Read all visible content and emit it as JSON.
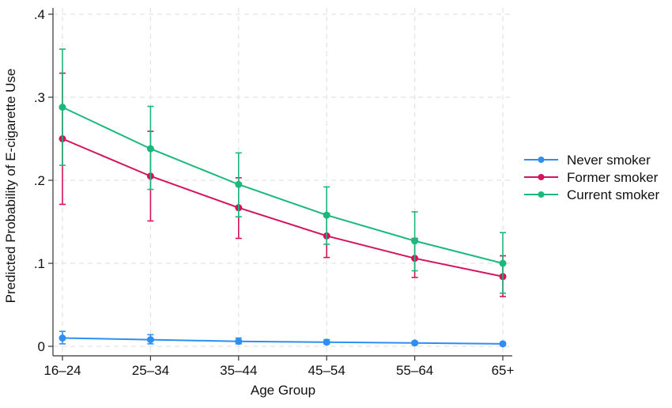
{
  "chart_data": {
    "type": "line",
    "title": "",
    "xlabel": "Age Group",
    "ylabel": "Predicted Probability of E-cigarette Use",
    "categories": [
      "16–24",
      "25–34",
      "35–44",
      "45–54",
      "55–64",
      "65+"
    ],
    "ylim": [
      0,
      0.4
    ],
    "yticks": [
      0,
      0.1,
      0.2,
      0.3,
      0.4
    ],
    "ytick_labels": [
      "0",
      ".1",
      ".2",
      ".3",
      ".4"
    ],
    "grid": true,
    "legend_position": "right",
    "series": [
      {
        "name": "Never smoker",
        "color": "#2f8ff0",
        "values": [
          0.01,
          0.008,
          0.006,
          0.005,
          0.004,
          0.003
        ],
        "ci_low": [
          0.003,
          0.003,
          0.003,
          0.003,
          0.002,
          0.002
        ],
        "ci_high": [
          0.018,
          0.014,
          0.01,
          0.008,
          0.006,
          0.004
        ]
      },
      {
        "name": "Former smoker",
        "color": "#d4145a",
        "values": [
          0.25,
          0.205,
          0.167,
          0.133,
          0.106,
          0.084
        ],
        "ci_low": [
          0.171,
          0.151,
          0.13,
          0.107,
          0.083,
          0.06
        ],
        "ci_high": [
          0.329,
          0.259,
          0.203,
          0.16,
          0.13,
          0.109
        ]
      },
      {
        "name": "Current smoker",
        "color": "#1ab87a",
        "values": [
          0.288,
          0.238,
          0.195,
          0.158,
          0.127,
          0.1
        ],
        "ci_low": [
          0.218,
          0.189,
          0.156,
          0.123,
          0.091,
          0.064
        ],
        "ci_high": [
          0.358,
          0.289,
          0.233,
          0.192,
          0.162,
          0.137
        ]
      }
    ]
  }
}
